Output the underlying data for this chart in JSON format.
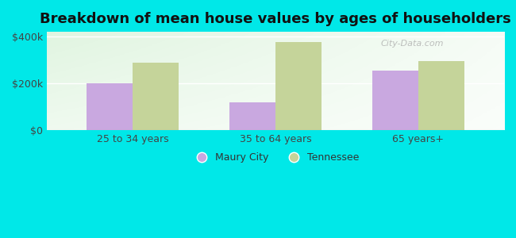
{
  "title": "Breakdown of mean house values by ages of householders",
  "categories": [
    "25 to 34 years",
    "35 to 64 years",
    "65 years+"
  ],
  "maury_city_values": [
    200000,
    120000,
    255000
  ],
  "tennessee_values": [
    290000,
    375000,
    295000
  ],
  "maury_city_color": "#c9a8e0",
  "tennessee_color": "#c5d49a",
  "background_color": "#00e8e8",
  "plot_bg_color": "#e8f5e4",
  "ylim": [
    0,
    420000
  ],
  "yticks": [
    0,
    200000,
    400000
  ],
  "ytick_labels": [
    "$0",
    "$200k",
    "$400k"
  ],
  "legend_maury": "Maury City",
  "legend_tennessee": "Tennessee",
  "bar_width": 0.32,
  "title_fontsize": 13,
  "tick_fontsize": 9,
  "legend_fontsize": 9,
  "watermark": "City-Data.com"
}
